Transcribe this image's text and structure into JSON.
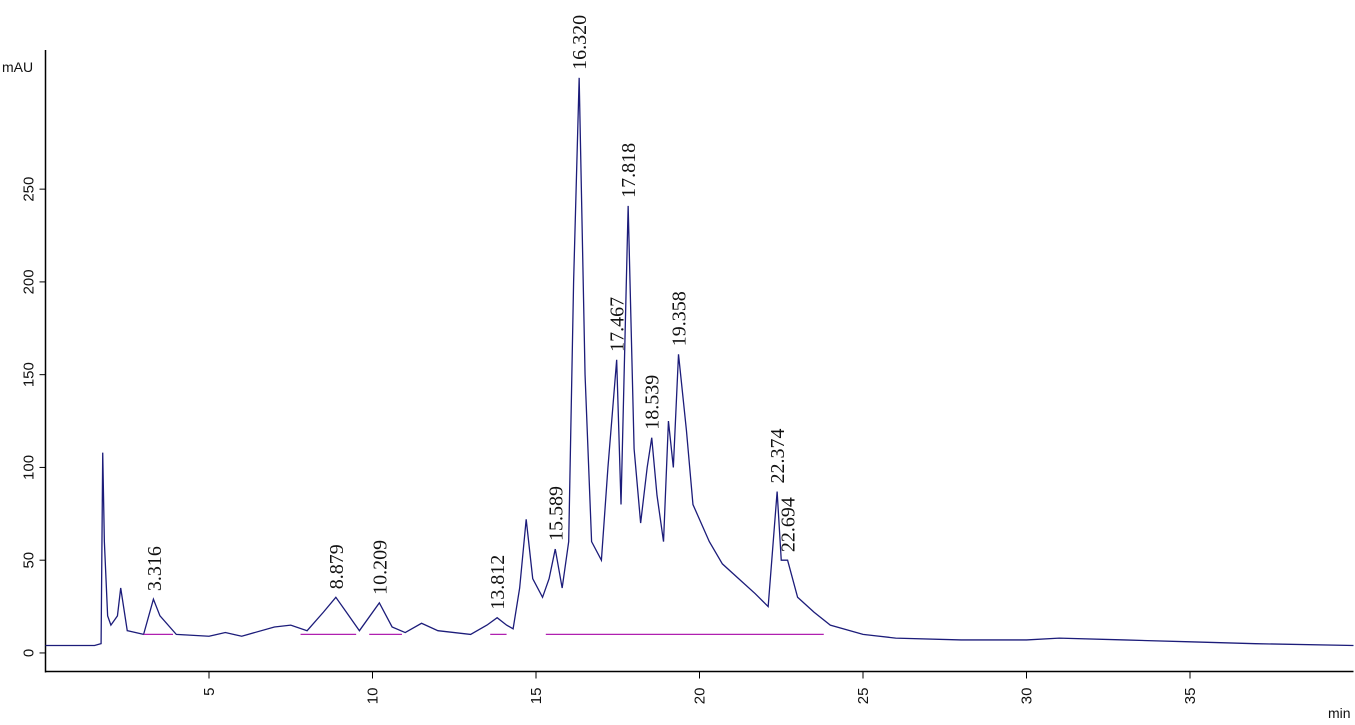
{
  "chart_data": {
    "type": "line",
    "y_label": "mAU",
    "x_label": "min",
    "xlim": [
      0,
      40
    ],
    "ylim": [
      -10,
      325
    ],
    "xticks": [
      5,
      10,
      15,
      20,
      25,
      30,
      35
    ],
    "yticks": [
      0,
      50,
      100,
      150,
      200,
      250
    ],
    "series": [
      {
        "color": "#1c1c7a",
        "x": [
          0,
          1.5,
          1.7,
          1.75,
          1.8,
          1.9,
          2.0,
          2.2,
          2.3,
          2.5,
          3.0,
          3.3,
          3.5,
          4.0,
          5,
          5.5,
          6,
          7,
          7.5,
          8,
          8.5,
          8.879,
          9.2,
          9.6,
          10.209,
          10.6,
          11,
          11.5,
          12,
          13,
          13.5,
          13.812,
          14.1,
          14.3,
          14.5,
          14.7,
          14.9,
          15.2,
          15.4,
          15.589,
          15.8,
          16.0,
          16.15,
          16.32,
          16.5,
          16.7,
          17.0,
          17.2,
          17.467,
          17.6,
          17.818,
          18.0,
          18.2,
          18.4,
          18.539,
          18.7,
          18.9,
          19.05,
          19.2,
          19.358,
          19.6,
          19.8,
          20.0,
          20.3,
          20.7,
          21.2,
          21.7,
          22.1,
          22.374,
          22.5,
          22.694,
          23.0,
          23.5,
          24,
          25,
          26,
          28,
          30,
          31,
          33,
          35,
          37,
          40
        ],
        "values": [
          4,
          4,
          5,
          108,
          60,
          20,
          15,
          20,
          35,
          12,
          10,
          29,
          20,
          10,
          9,
          11,
          9,
          14,
          15,
          12,
          22,
          30,
          22,
          12,
          27,
          14,
          11,
          16,
          12,
          10,
          15,
          19,
          15,
          13,
          35,
          72,
          40,
          30,
          40,
          56,
          35,
          60,
          200,
          310,
          150,
          60,
          50,
          100,
          158,
          80,
          241,
          110,
          70,
          100,
          116,
          85,
          60,
          125,
          100,
          161,
          120,
          80,
          72,
          60,
          48,
          40,
          32,
          25,
          87,
          50,
          50,
          30,
          22,
          15,
          10,
          8,
          7,
          7,
          8,
          7,
          6,
          5,
          4
        ]
      },
      {
        "color": "#b020b0",
        "x": [
          3.0,
          3.9,
          3.95,
          7.8,
          9.5,
          9.7,
          9.9,
          10.9,
          11.0,
          13.6,
          14.1,
          14.5,
          15.3,
          23.8
        ],
        "values": [
          10,
          10,
          null,
          10,
          10,
          null,
          10,
          10,
          null,
          10,
          10,
          null,
          10,
          10
        ]
      }
    ],
    "peaks": {
      "x": [
        3.316,
        8.879,
        10.209,
        13.812,
        15.589,
        16.32,
        17.467,
        17.818,
        18.539,
        19.358,
        22.374,
        22.694
      ],
      "y": [
        29,
        30,
        27,
        19,
        56,
        310,
        158,
        241,
        116,
        161,
        87,
        50
      ],
      "labels": [
        "3.316",
        "8.879",
        "10.209",
        "13.812",
        "15.589",
        "16.320",
        "17.467",
        "17.818",
        "18.539",
        "19.358",
        "22.374",
        "22.694"
      ]
    }
  }
}
